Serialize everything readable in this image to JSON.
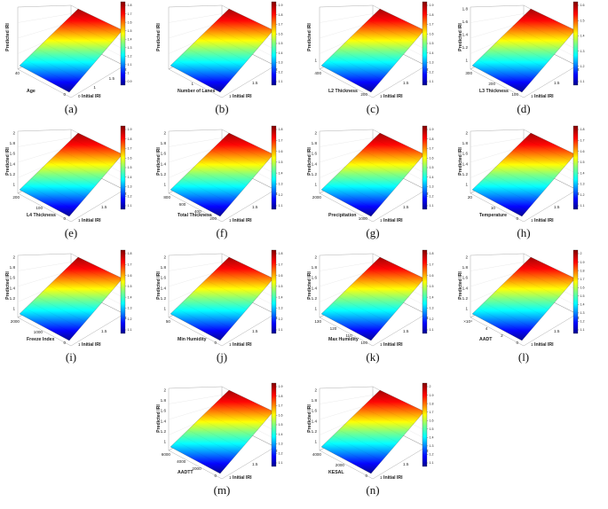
{
  "figure": {
    "panels": [
      {
        "label": "(a)",
        "x_axis": "Age",
        "y_axis": "Initial IRI",
        "z_axis": "Predicted IRI"
      },
      {
        "label": "(b)",
        "x_axis": "Number of Lanes",
        "y_axis": "Initial IRI",
        "z_axis": "Predicted IRI"
      },
      {
        "label": "(c)",
        "x_axis": "L2 Thickness",
        "y_axis": "Initial IRI",
        "z_axis": "Predicted IRI"
      },
      {
        "label": "(d)",
        "x_axis": "L3 Thickness",
        "y_axis": "Initial IRI",
        "z_axis": "Predicted IRI"
      },
      {
        "label": "(e)",
        "x_axis": "L4 Thickness",
        "y_axis": "Initial IRI",
        "z_axis": "Predicted IRI"
      },
      {
        "label": "(f)",
        "x_axis": "Total Thickness",
        "y_axis": "Initial IRI",
        "z_axis": "Predicted IRI"
      },
      {
        "label": "(g)",
        "x_axis": "Precipitation",
        "y_axis": "Initial IRI",
        "z_axis": "Predicted IRI"
      },
      {
        "label": "(h)",
        "x_axis": "Temperature",
        "y_axis": "Initial IRI",
        "z_axis": "Predicted IRI"
      },
      {
        "label": "(i)",
        "x_axis": "Freeze Index",
        "y_axis": "Initial IRI",
        "z_axis": "Predicted IRI"
      },
      {
        "label": "(j)",
        "x_axis": "Min Humidity",
        "y_axis": "Initial IRI",
        "z_axis": "Predicted IRI"
      },
      {
        "label": "(k)",
        "x_axis": "Max Humidity",
        "y_axis": "Initial IRI",
        "z_axis": "Predicted IRI"
      },
      {
        "label": "(l)",
        "x_axis": "AADT",
        "y_axis": "Initial IRI",
        "z_axis": "Predicted IRI"
      },
      {
        "label": "(m)",
        "x_axis": "AADTT",
        "y_axis": "Initial IRI",
        "z_axis": "Predicted IRI"
      },
      {
        "label": "(n)",
        "x_axis": "KESAL",
        "y_axis": "Initial IRI",
        "z_axis": "Predicted IRI"
      }
    ],
    "colors": {
      "colormap": "jet",
      "low": "#00008f",
      "high": "#800000"
    }
  },
  "chart_data": [
    {
      "type": "surface",
      "title": "",
      "xlabel": "Age",
      "ylabel": "Initial IRI",
      "zlabel": "Predicted IRI",
      "x_ticks": [
        "40",
        "0"
      ],
      "y_ticks": [
        "0",
        "1",
        "1.5",
        "2"
      ],
      "z_ticks": [],
      "colorbar_ticks": [
        "1.8",
        "1.7",
        "1.6",
        "1.5",
        "1.4",
        "1.3",
        "1.2",
        "1.1",
        "1",
        "0.9"
      ],
      "clim": [
        0.9,
        1.8
      ]
    },
    {
      "type": "surface",
      "title": "",
      "xlabel": "Number of Lanes",
      "ylabel": "Initial IRI",
      "zlabel": "Predicted IRI",
      "x_ticks": [
        "1"
      ],
      "y_ticks": [
        "1",
        "1.5",
        "2"
      ],
      "z_ticks": [],
      "colorbar_ticks": [
        "1.9",
        "1.8",
        "1.7",
        "1.6",
        "1.5",
        "1.4",
        "1.3",
        "1.2",
        "1.1"
      ],
      "clim": [
        1.1,
        1.9
      ]
    },
    {
      "type": "surface",
      "title": "",
      "xlabel": "L2 Thickness",
      "ylabel": "Initial IRI",
      "zlabel": "Predicted IRI",
      "x_ticks": [
        "400",
        "200"
      ],
      "y_ticks": [
        "1",
        "1.5",
        "2"
      ],
      "z_ticks": [
        "1"
      ],
      "colorbar_ticks": [
        "1.9",
        "1.8",
        "1.7",
        "1.6",
        "1.5",
        "1.4",
        "1.3",
        "1.2",
        "1.1"
      ],
      "clim": [
        1.1,
        1.9
      ]
    },
    {
      "type": "surface",
      "title": "",
      "xlabel": "L3 Thickness",
      "ylabel": "Initial IRI",
      "zlabel": "Predicted IRI",
      "x_ticks": [
        "300",
        "200",
        "100"
      ],
      "y_ticks": [
        "1",
        "1.5",
        "2"
      ],
      "z_ticks": [
        "1.8",
        "1.6",
        "1.4",
        "1.2",
        "1"
      ],
      "colorbar_ticks": [
        "1.6",
        "1.5",
        "1.4",
        "1.3",
        "1.2",
        "1.1"
      ],
      "clim": [
        1.1,
        1.6
      ]
    },
    {
      "type": "surface",
      "title": "",
      "xlabel": "L4 Thickness",
      "ylabel": "Initial IRI",
      "zlabel": "Predicted IRI",
      "x_ticks": [
        "200",
        "100",
        "0"
      ],
      "y_ticks": [
        "1",
        "1.5",
        "2"
      ],
      "z_ticks": [
        "2",
        "1.8",
        "1.6",
        "1.4",
        "1.2",
        "1"
      ],
      "colorbar_ticks": [
        "1.9",
        "1.8",
        "1.7",
        "1.6",
        "1.5",
        "1.4",
        "1.3",
        "1.2",
        "1.1"
      ],
      "clim": [
        1.1,
        1.9
      ]
    },
    {
      "type": "surface",
      "title": "",
      "xlabel": "Total Thickness",
      "ylabel": "Initial IRI",
      "zlabel": "Predicted IRI",
      "x_ticks": [
        "800",
        "600",
        "400",
        "200"
      ],
      "y_ticks": [
        "1",
        "1.5",
        "2"
      ],
      "z_ticks": [
        "2",
        "1.8",
        "1.6",
        "1.4",
        "1.2",
        "1"
      ],
      "colorbar_ticks": [
        "1.8",
        "1.7",
        "1.6",
        "1.5",
        "1.4",
        "1.3",
        "1.2",
        "1.1"
      ],
      "clim": [
        1.1,
        1.8
      ]
    },
    {
      "type": "surface",
      "title": "",
      "xlabel": "Precipitation",
      "ylabel": "Initial IRI",
      "zlabel": "Predicted IRI",
      "x_ticks": [
        "2000",
        "1000"
      ],
      "y_ticks": [
        "1",
        "1.5",
        "2"
      ],
      "z_ticks": [
        "2",
        "1.8",
        "1.6",
        "1.4",
        "1.2",
        "1"
      ],
      "colorbar_ticks": [
        "1.9",
        "1.8",
        "1.7",
        "1.6",
        "1.5",
        "1.4",
        "1.3",
        "1.2",
        "1.1"
      ],
      "clim": [
        1.1,
        1.9
      ]
    },
    {
      "type": "surface",
      "title": "",
      "xlabel": "Temperature",
      "ylabel": "Initial IRI",
      "zlabel": "Predicted IRI",
      "x_ticks": [
        "20",
        "10",
        "0"
      ],
      "y_ticks": [
        "1",
        "1.5",
        "2"
      ],
      "z_ticks": [
        "2",
        "1.8",
        "1.6",
        "1.4",
        "1.2",
        "1"
      ],
      "colorbar_ticks": [
        "1.8",
        "1.7",
        "1.6",
        "1.5",
        "1.4",
        "1.3",
        "1.2",
        "1.1"
      ],
      "clim": [
        1.1,
        1.8
      ]
    },
    {
      "type": "surface",
      "title": "",
      "xlabel": "Freeze Index",
      "ylabel": "Initial IRI",
      "zlabel": "Predicted IRI",
      "x_ticks": [
        "2000",
        "1000",
        "0"
      ],
      "y_ticks": [
        "1",
        "1.5",
        "2"
      ],
      "z_ticks": [
        "2",
        "1.8",
        "1.6",
        "1.4",
        "1.2",
        "1"
      ],
      "colorbar_ticks": [
        "1.8",
        "1.7",
        "1.6",
        "1.5",
        "1.4",
        "1.3",
        "1.2",
        "1.1"
      ],
      "clim": [
        1.1,
        1.8
      ]
    },
    {
      "type": "surface",
      "title": "",
      "xlabel": "Min Humidity",
      "ylabel": "Initial IRI",
      "zlabel": "Predicted IRI",
      "x_ticks": [
        "50",
        "0"
      ],
      "y_ticks": [
        "1",
        "1.5",
        "2"
      ],
      "z_ticks": [
        "2",
        "1.8",
        "1.6",
        "1.4",
        "1.2",
        "1"
      ],
      "colorbar_ticks": [
        "1.8",
        "1.7",
        "1.6",
        "1.5",
        "1.4",
        "1.3",
        "1.2",
        "1.1"
      ],
      "clim": [
        1.1,
        1.8
      ]
    },
    {
      "type": "surface",
      "title": "",
      "xlabel": "Max Humidity",
      "ylabel": "Initial IRI",
      "zlabel": "Predicted IRI",
      "x_ticks": [
        "130",
        "120",
        "110",
        "100"
      ],
      "y_ticks": [
        "1",
        "1.5",
        "2"
      ],
      "z_ticks": [
        "2",
        "1.8",
        "1.6",
        "1.4",
        "1.2",
        "1"
      ],
      "colorbar_ticks": [
        "1.8",
        "1.7",
        "1.6",
        "1.5",
        "1.4",
        "1.3",
        "1.2",
        "1.1"
      ],
      "clim": [
        1.1,
        1.8
      ]
    },
    {
      "type": "surface",
      "title": "",
      "xlabel": "AADT",
      "ylabel": "Initial IRI",
      "zlabel": "Predicted IRI",
      "x_ticks": [
        "×10⁴",
        "4",
        "2",
        "0"
      ],
      "y_ticks": [
        "1",
        "1.5",
        "2"
      ],
      "z_ticks": [
        "2",
        "1.8",
        "1.6",
        "1.4",
        "1.2",
        "1"
      ],
      "colorbar_ticks": [
        "2",
        "1.9",
        "1.8",
        "1.7",
        "1.6",
        "1.5",
        "1.4",
        "1.3",
        "1.2",
        "1.1"
      ],
      "clim": [
        1.1,
        2.0
      ]
    },
    {
      "type": "surface",
      "title": "",
      "xlabel": "AADTT",
      "ylabel": "Initial IRI",
      "zlabel": "Predicted IRI",
      "x_ticks": [
        "6000",
        "4000",
        "2000",
        "0"
      ],
      "y_ticks": [
        "1",
        "1.5",
        "2"
      ],
      "z_ticks": [
        "2",
        "1.8",
        "1.6",
        "1.4",
        "1.2",
        "1"
      ],
      "colorbar_ticks": [
        "1.9",
        "1.8",
        "1.7",
        "1.6",
        "1.5",
        "1.4",
        "1.3",
        "1.2",
        "1.1"
      ],
      "clim": [
        1.1,
        1.9
      ]
    },
    {
      "type": "surface",
      "title": "",
      "xlabel": "KESAL",
      "ylabel": "Initial IRI",
      "zlabel": "Predicted IRI",
      "x_ticks": [
        "4000",
        "2000",
        "0"
      ],
      "y_ticks": [
        "1",
        "1.5",
        "2"
      ],
      "z_ticks": [
        "2",
        "1.8",
        "1.6",
        "1.4",
        "1.2",
        "1"
      ],
      "colorbar_ticks": [
        "2",
        "1.9",
        "1.8",
        "1.7",
        "1.6",
        "1.5",
        "1.4",
        "1.3",
        "1.2",
        "1.1"
      ],
      "clim": [
        1.1,
        2.0
      ]
    }
  ]
}
